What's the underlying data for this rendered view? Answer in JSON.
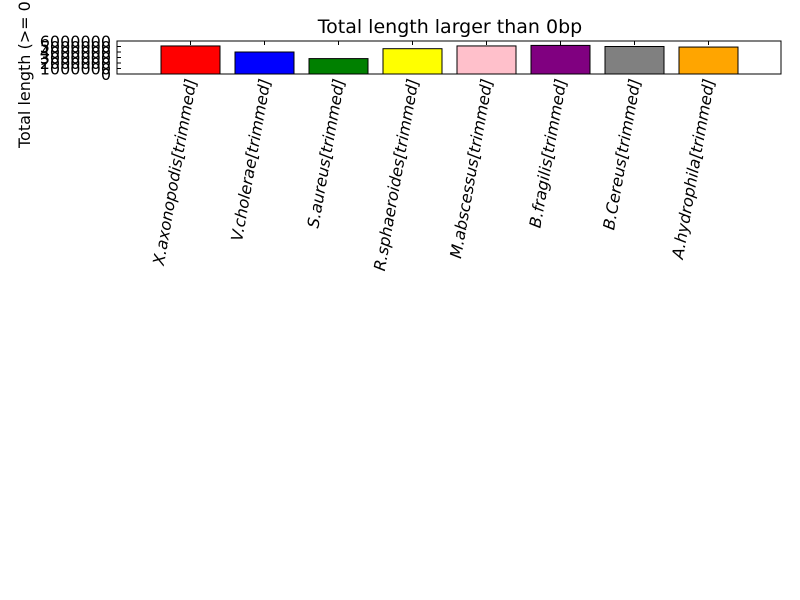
{
  "chart_data": {
    "type": "bar",
    "title": "Total length larger than 0bp",
    "xlabel": "",
    "ylabel": "Total length (>= 0",
    "ylim": [
      0,
      6000000
    ],
    "yticks": [
      "0",
      "1000000",
      "2000000",
      "3000000",
      "4000000",
      "5000000",
      "6000000"
    ],
    "categories": [
      "X.axonopodis[trimmed]",
      "V.cholerae[trimmed]",
      "S.aureus[trimmed]",
      "R.sphaeroides[trimmed]",
      "M.abscessus[trimmed]",
      "B.fragilis[trimmed]",
      "B.Cereus[trimmed]",
      "A.hydrophila[trimmed]"
    ],
    "values": [
      5100000,
      4000000,
      2800000,
      4600000,
      5100000,
      5200000,
      5000000,
      4900000
    ],
    "colors": [
      "#ff0000",
      "#0000ff",
      "#008000",
      "#ffff00",
      "#ffc0cb",
      "#800080",
      "#808080",
      "#ffa500"
    ],
    "grid": false,
    "legend": "none"
  }
}
